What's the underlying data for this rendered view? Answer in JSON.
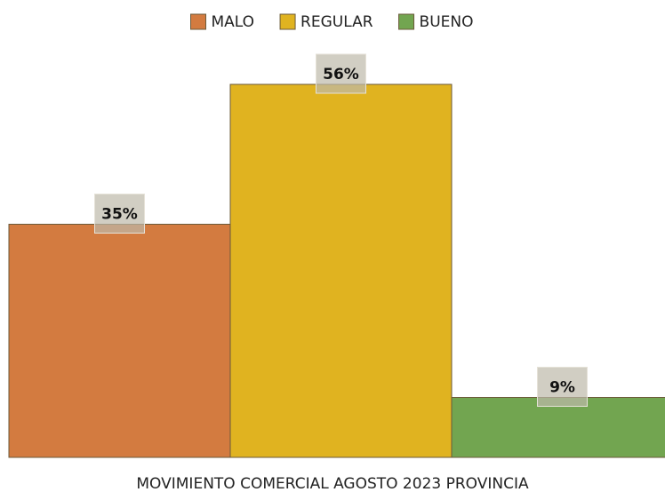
{
  "chart_data": {
    "type": "bar",
    "categories": [
      "MOVIMIENTO COMERCIAL AGOSTO 2023 PROVINCIA"
    ],
    "series": [
      {
        "name": "MALO",
        "color": "#d37b40",
        "values": [
          35
        ],
        "value_labels": [
          "35%"
        ]
      },
      {
        "name": "REGULAR",
        "color": "#e0b320",
        "values": [
          56
        ],
        "value_labels": [
          "56%"
        ]
      },
      {
        "name": "BUENO",
        "color": "#72a550",
        "values": [
          9
        ],
        "value_labels": [
          "9%"
        ]
      }
    ],
    "legend": "top"
  }
}
